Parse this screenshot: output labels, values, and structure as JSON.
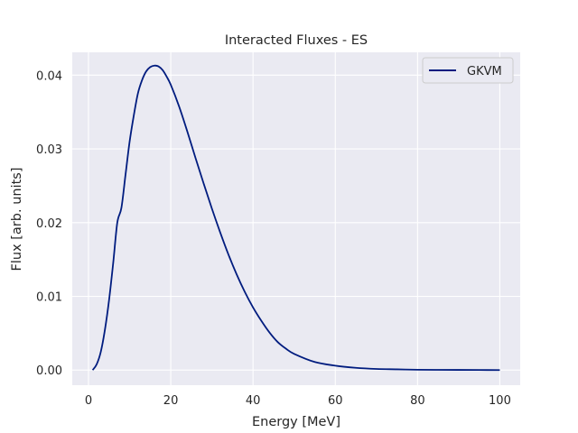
{
  "chart_data": {
    "type": "line",
    "title": "Interacted Fluxes - ES",
    "xlabel": "Energy [MeV]",
    "ylabel": "Flux [arb. units]",
    "xlim": [
      -3.95,
      104.95
    ],
    "ylim": [
      -0.00205,
      0.0431
    ],
    "xticks": [
      0,
      20,
      40,
      60,
      80,
      100
    ],
    "xtick_labels": [
      "0",
      "20",
      "40",
      "60",
      "80",
      "100"
    ],
    "yticks": [
      0,
      0.01,
      0.02,
      0.03,
      0.04
    ],
    "ytick_labels": [
      "0.00",
      "0.01",
      "0.02",
      "0.03",
      "0.04"
    ],
    "grid": true,
    "legend_position": "top-right",
    "colors": {
      "plot_background": "#eaeaf2",
      "grid": "#ffffff",
      "series": "#001c7f"
    },
    "series": [
      {
        "name": "GKVM",
        "x": [
          1,
          2,
          3,
          4,
          5,
          6,
          7,
          8,
          9,
          10,
          11,
          12,
          13,
          14,
          15,
          16,
          17,
          18,
          19,
          20,
          22,
          24,
          26,
          28,
          30,
          32,
          34,
          36,
          38,
          40,
          42,
          44,
          46,
          48,
          50,
          55,
          60,
          65,
          70,
          75,
          80,
          85,
          90,
          95,
          100
        ],
        "y": [
          0.0,
          0.0008,
          0.0025,
          0.0055,
          0.0095,
          0.0145,
          0.02,
          0.022,
          0.0265,
          0.031,
          0.0345,
          0.0375,
          0.0393,
          0.0405,
          0.0411,
          0.0413,
          0.0412,
          0.0407,
          0.0398,
          0.0387,
          0.0358,
          0.0324,
          0.0288,
          0.0253,
          0.0219,
          0.0187,
          0.0157,
          0.013,
          0.0106,
          0.0085,
          0.0067,
          0.0051,
          0.0038,
          0.0029,
          0.0022,
          0.0011,
          0.0006,
          0.0003,
          0.00015,
          0.0001,
          5e-05,
          3e-05,
          2e-05,
          1e-05,
          0.0
        ]
      }
    ]
  }
}
